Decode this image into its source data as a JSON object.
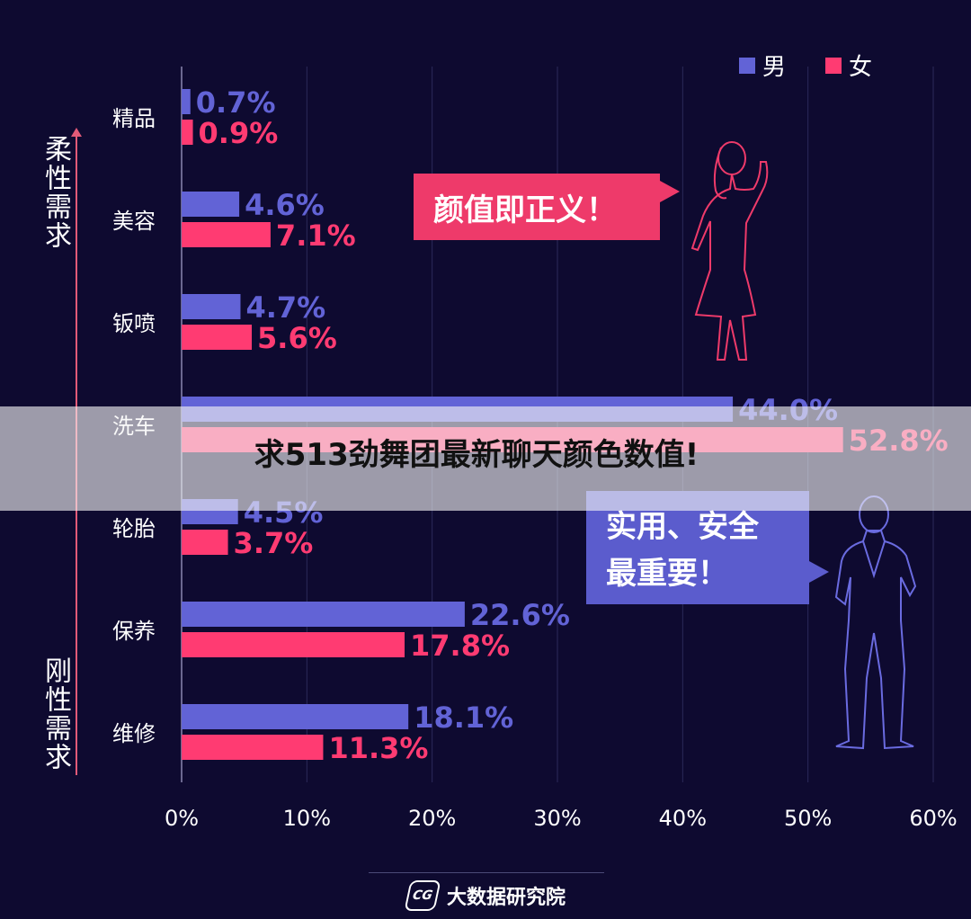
{
  "chart_data": {
    "type": "bar",
    "orientation": "horizontal",
    "categories": [
      "精品",
      "美容",
      "钣喷",
      "洗车",
      "轮胎",
      "保养",
      "维修"
    ],
    "series": [
      {
        "name": "男",
        "color": "#6263d6",
        "values": [
          0.7,
          4.6,
          4.7,
          44.0,
          4.5,
          22.6,
          18.1
        ],
        "labels": [
          "0.7%",
          "4.6%",
          "4.7%",
          "44.0%",
          "4.5%",
          "22.6%",
          "18.1%"
        ]
      },
      {
        "name": "女",
        "color": "#ff3b72",
        "values": [
          0.9,
          7.1,
          5.6,
          52.8,
          3.7,
          17.8,
          11.3
        ],
        "labels": [
          "0.9%",
          "7.1%",
          "5.6%",
          "52.8%",
          "3.7%",
          "17.8%",
          "11.3%"
        ]
      }
    ],
    "xlim": [
      0,
      60
    ],
    "xticks": [
      0,
      10,
      20,
      30,
      40,
      50,
      60
    ],
    "xtick_labels": [
      "0%",
      "10%",
      "20%",
      "30%",
      "40%",
      "50%",
      "60%"
    ],
    "grid": true,
    "legend_position": "top-right"
  },
  "legend": {
    "male": "男",
    "female": "女"
  },
  "side_labels": {
    "top": "柔性需求",
    "bottom": "刚性需求"
  },
  "callouts": {
    "beauty": "颜值即正义！",
    "practical_line1": "实用、安全",
    "practical_line2": "最重要！"
  },
  "overlay_caption": "求513劲舞团最新聊天颜色数值!",
  "footer": {
    "logo_text": "CG",
    "brand": "大数据研究院"
  },
  "colors": {
    "background": "#0e0a30",
    "male": "#6263d6",
    "female": "#ff3b72",
    "grid": "#2c2a5a",
    "accent": "#e25a78"
  }
}
